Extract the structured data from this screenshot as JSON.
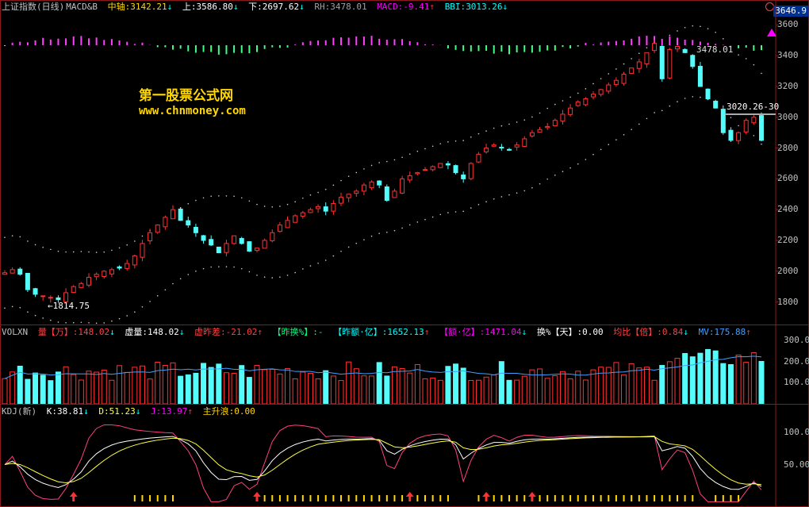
{
  "main": {
    "title": "上证指数(日线)",
    "indicator": "MACD&B",
    "mid_label": "中轴:",
    "mid_value": "3142.21",
    "up_label": "上:",
    "up_value": "3586.80",
    "down_label": "下:",
    "down_value": "2697.62",
    "rh_label": "RH:",
    "rh_value": "3478.01",
    "macd_label": "MACD:",
    "macd_value": "-9.41",
    "bbi_label": "BBI:",
    "bbi_value": "3013.26",
    "current_price": "3646.9",
    "low_annotation": "←1814.75",
    "rh_annotation": "3478.01",
    "line_annotation": "3020.26-30",
    "y_ticks": [
      "3600",
      "3400",
      "3200",
      "3000",
      "2800",
      "2600",
      "2400",
      "2200",
      "2000",
      "1800"
    ],
    "watermark_cn": "第一股票公式网",
    "watermark_url": "www.chnmoney.com"
  },
  "volume": {
    "title": "VOLXN",
    "vol_label": "量【万】:",
    "vol_value": "148.02",
    "xu_label": "虚量:",
    "xu_value": "148.02",
    "xzc_label": "虚昨差:",
    "xzc_value": "-21.02",
    "zhs_label": "【昨换%】:",
    "zhs_value": "-",
    "zey_label": "【昨额·亿】:",
    "zey_value": "1652.13",
    "ey_label": "【额·亿】:",
    "ey_value": "1471.04",
    "hs_label": "换%【天】:",
    "hs_value": "0.00",
    "jb_label": "均比【倍】:",
    "jb_value": "0.84",
    "mv_label": "MV:",
    "mv_value": "175.88",
    "y_ticks": [
      "300.0",
      "200.0",
      "100.0"
    ]
  },
  "kdj": {
    "title": "KDJ(新)",
    "k_label": "K:",
    "k_value": "38.81",
    "d_label": "D:",
    "d_value": "51.23",
    "j_label": "J:",
    "j_value": "13.97",
    "zs_label": "主升浪:",
    "zs_value": "0.00",
    "y_ticks": [
      "100.0",
      "50.00"
    ]
  },
  "chart_data": {
    "type": "line",
    "title": "",
    "y_range": [
      1700,
      3700
    ],
    "close": [
      1990,
      2010,
      1980,
      1880,
      1850,
      1840,
      1830,
      1815,
      1860,
      1900,
      1920,
      1960,
      1980,
      2000,
      2010,
      2020,
      2050,
      2100,
      2180,
      2250,
      2300,
      2350,
      2400,
      2330,
      2300,
      2250,
      2200,
      2170,
      2120,
      2180,
      2230,
      2180,
      2130,
      2150,
      2200,
      2250,
      2300,
      2330,
      2360,
      2380,
      2400,
      2420,
      2390,
      2440,
      2480,
      2500,
      2520,
      2560,
      2580,
      2560,
      2460,
      2520,
      2600,
      2620,
      2640,
      2660,
      2680,
      2700,
      2690,
      2640,
      2600,
      2700,
      2760,
      2800,
      2820,
      2800,
      2790,
      2820,
      2860,
      2900,
      2920,
      2940,
      2980,
      3020,
      3060,
      3100,
      3120,
      3150,
      3180,
      3210,
      3240,
      3280,
      3320,
      3360,
      3420,
      3480,
      3250,
      3440,
      3460,
      3420,
      3330,
      3200,
      3120,
      3060,
      2900,
      2850,
      2900,
      2980,
      3000,
      2850
    ]
  }
}
